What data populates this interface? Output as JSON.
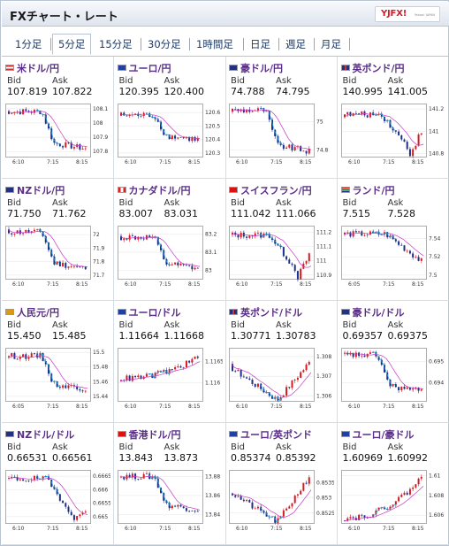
{
  "header": {
    "title": "FXチャート・レート",
    "logo_text": "YJFX!",
    "logo_sub": "Yahoo! JAPAN"
  },
  "tabs": [
    {
      "label": "1分足"
    },
    {
      "label": "5分足",
      "active": true
    },
    {
      "label": "15分足"
    },
    {
      "label": "30分足"
    },
    {
      "label": "1時間足"
    },
    {
      "label": "日足"
    },
    {
      "label": "週足"
    },
    {
      "label": "月足"
    }
  ],
  "quote_labels": {
    "bid": "Bid",
    "ask": "Ask"
  },
  "colors": {
    "title": "#5a2d88",
    "up_candle": "#d61a22",
    "down_candle": "#1c2f8a",
    "ma_line": "#c637c6",
    "signal_line": "#1ca6d9"
  },
  "pairs": [
    {
      "name": "米ドル/円",
      "flag": "us",
      "bid": "107.819",
      "ask": "107.822",
      "chart": {
        "x_ticks": [
          "6:10",
          "7:15",
          "8:15"
        ],
        "y_ticks": [
          "108.1",
          "108",
          "107.9",
          "107.8"
        ],
        "y_min": 107.77,
        "y_max": 108.13,
        "start": 108.08,
        "end": 107.82,
        "shape": "dropmid"
      }
    },
    {
      "name": "ユーロ/円",
      "flag": "eu",
      "bid": "120.395",
      "ask": "120.400",
      "chart": {
        "x_ticks": [
          "6:10",
          "7:15",
          "8:15"
        ],
        "y_ticks": [
          "120.6",
          "120.5",
          "120.4",
          "120.3"
        ],
        "y_min": 120.28,
        "y_max": 120.66,
        "start": 120.58,
        "end": 120.4,
        "shape": "dropmid"
      }
    },
    {
      "name": "豪ドル/円",
      "flag": "au",
      "bid": "74.788",
      "ask": "74.795",
      "chart": {
        "x_ticks": [
          "6:10",
          "7:15",
          "8:15"
        ],
        "y_ticks": [
          "75",
          "74.8"
        ],
        "y_min": 74.76,
        "y_max": 75.12,
        "start": 75.08,
        "end": 74.79,
        "shape": "dropmid"
      }
    },
    {
      "name": "英ポンド/円",
      "flag": "gb",
      "bid": "140.995",
      "ask": "141.005",
      "chart": {
        "x_ticks": [
          "6:10",
          "7:15",
          "8:15"
        ],
        "y_ticks": [
          "141.2",
          "141",
          "140.8"
        ],
        "y_min": 140.78,
        "y_max": 141.24,
        "start": 141.15,
        "end": 141.0,
        "shape": "dropdip"
      }
    },
    {
      "name": "NZドル/円",
      "flag": "nz",
      "bid": "71.750",
      "ask": "71.762",
      "chart": {
        "x_ticks": [
          "6:10",
          "7:15",
          "8:15"
        ],
        "y_ticks": [
          "72",
          "71.9",
          "71.8",
          "71.7"
        ],
        "y_min": 71.68,
        "y_max": 72.06,
        "start": 72.02,
        "end": 71.75,
        "shape": "dropmid"
      }
    },
    {
      "name": "カナダドル/円",
      "flag": "ca",
      "bid": "83.007",
      "ask": "83.031",
      "chart": {
        "x_ticks": [
          "6:10",
          "7:15",
          "8:15"
        ],
        "y_ticks": [
          "83.2",
          "83.1",
          "83"
        ],
        "y_min": 82.96,
        "y_max": 83.24,
        "start": 83.18,
        "end": 83.01,
        "shape": "dropmid"
      }
    },
    {
      "name": "スイスフラン/円",
      "flag": "ch",
      "bid": "111.042",
      "ask": "111.066",
      "chart": {
        "x_ticks": [
          "6:10",
          "7:15",
          "8:15"
        ],
        "y_ticks": [
          "111.2",
          "111.1",
          "111",
          "110.9"
        ],
        "y_min": 110.88,
        "y_max": 111.24,
        "start": 111.18,
        "end": 111.04,
        "shape": "dropdip"
      }
    },
    {
      "name": "ランド/円",
      "flag": "za",
      "bid": "7.515",
      "ask": "7.528",
      "chart": {
        "x_ticks": [
          "6:05",
          "7:15",
          "8:15"
        ],
        "y_ticks": [
          "7.54",
          "7.52",
          "7.5"
        ],
        "y_min": 7.497,
        "y_max": 7.553,
        "start": 7.545,
        "end": 7.515,
        "shape": "spiky"
      }
    },
    {
      "name": "人民元/円",
      "flag": "cn",
      "bid": "15.450",
      "ask": "15.485",
      "chart": {
        "x_ticks": [
          "6:05",
          "7:15",
          "8:15"
        ],
        "y_ticks": [
          "15.5",
          "15.48",
          "15.46",
          "15.44"
        ],
        "y_min": 15.435,
        "y_max": 15.505,
        "start": 15.495,
        "end": 15.45,
        "shape": "dropmid"
      }
    },
    {
      "name": "ユーロ/ドル",
      "flag": "eu",
      "bid": "1.11664",
      "ask": "1.11668",
      "chart": {
        "x_ticks": [
          "6:10",
          "7:15",
          "8:15"
        ],
        "y_ticks": [
          "1.1165",
          "1.116"
        ],
        "y_min": 1.1156,
        "y_max": 1.1168,
        "start": 1.1161,
        "end": 1.1166,
        "shape": "rise"
      }
    },
    {
      "name": "英ポンド/ドル",
      "flag": "gb",
      "bid": "1.30771",
      "ask": "1.30783",
      "chart": {
        "x_ticks": [
          "6:10",
          "7:15",
          "8:15"
        ],
        "y_ticks": [
          "1.308",
          "1.307",
          "1.306"
        ],
        "y_min": 1.3058,
        "y_max": 1.3084,
        "start": 1.3075,
        "end": 1.3077,
        "shape": "vshape"
      }
    },
    {
      "name": "豪ドル/ドル",
      "flag": "au",
      "bid": "0.69357",
      "ask": "0.69375",
      "chart": {
        "x_ticks": [
          "6:10",
          "7:15",
          "8:15"
        ],
        "y_ticks": [
          "0.695",
          "0.694"
        ],
        "y_min": 0.6932,
        "y_max": 0.6956,
        "start": 0.6953,
        "end": 0.6936,
        "shape": "dropmid"
      }
    },
    {
      "name": "NZドル/ドル",
      "flag": "nz",
      "bid": "0.66531",
      "ask": "0.66561",
      "chart": {
        "x_ticks": [
          "6:10",
          "7:15",
          "8:15"
        ],
        "y_ticks": [
          "0.6665",
          "0.666",
          "0.6655",
          "0.665"
        ],
        "y_min": 0.6648,
        "y_max": 0.6667,
        "start": 0.6664,
        "end": 0.6653,
        "shape": "dropdip"
      }
    },
    {
      "name": "香港ドル/円",
      "flag": "hk",
      "bid": "13.843",
      "ask": "13.873",
      "chart": {
        "x_ticks": [
          "6:10",
          "7:15",
          "8:15"
        ],
        "y_ticks": [
          "13.88",
          "13.86",
          "13.84"
        ],
        "y_min": 13.832,
        "y_max": 13.886,
        "start": 13.88,
        "end": 13.845,
        "shape": "dropmid"
      }
    },
    {
      "name": "ユーロ/英ポンド",
      "flag": "eu",
      "bid": "0.85374",
      "ask": "0.85392",
      "chart": {
        "x_ticks": [
          "6:10",
          "7:15",
          "8:15"
        ],
        "y_ticks": [
          "0.8535",
          "0.853",
          "0.8525"
        ],
        "y_min": 0.8522,
        "y_max": 0.8539,
        "start": 0.8532,
        "end": 0.8537,
        "shape": "vshape"
      }
    },
    {
      "name": "ユーロ/豪ドル",
      "flag": "eu",
      "bid": "1.60969",
      "ask": "1.60992",
      "chart": {
        "x_ticks": [
          "6:10",
          "7:15",
          "8:15"
        ],
        "y_ticks": [
          "1.61",
          "1.608",
          "1.606"
        ],
        "y_min": 1.6053,
        "y_max": 1.6105,
        "start": 1.6057,
        "end": 1.6098,
        "shape": "rise"
      }
    }
  ]
}
